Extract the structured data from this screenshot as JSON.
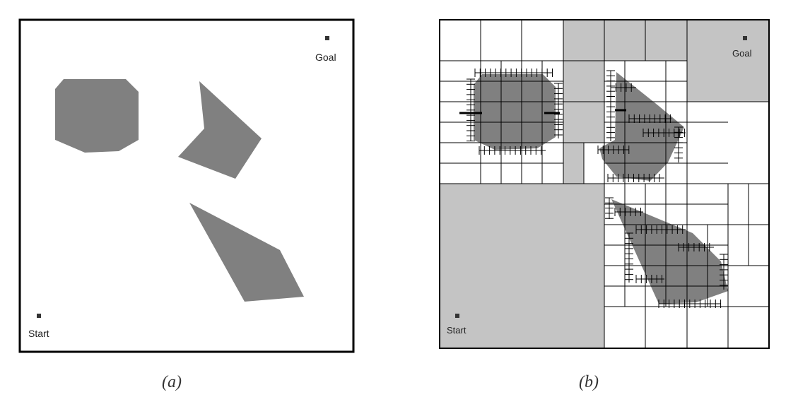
{
  "figure": {
    "panel_a": {
      "caption": "(a)",
      "start_label": "Start",
      "goal_label": "Goal",
      "obstacles": [
        "octagon-obstacle",
        "arrowhead-obstacle",
        "quadrilateral-obstacle"
      ]
    },
    "panel_b": {
      "caption": "(b)",
      "start_label": "Start",
      "goal_label": "Goal",
      "description_icon": "quadtree-decomposition"
    },
    "colors": {
      "obstacle": "#808080",
      "free_cell": "#c4c4c4",
      "background": "#ffffff",
      "border": "#000000"
    }
  }
}
